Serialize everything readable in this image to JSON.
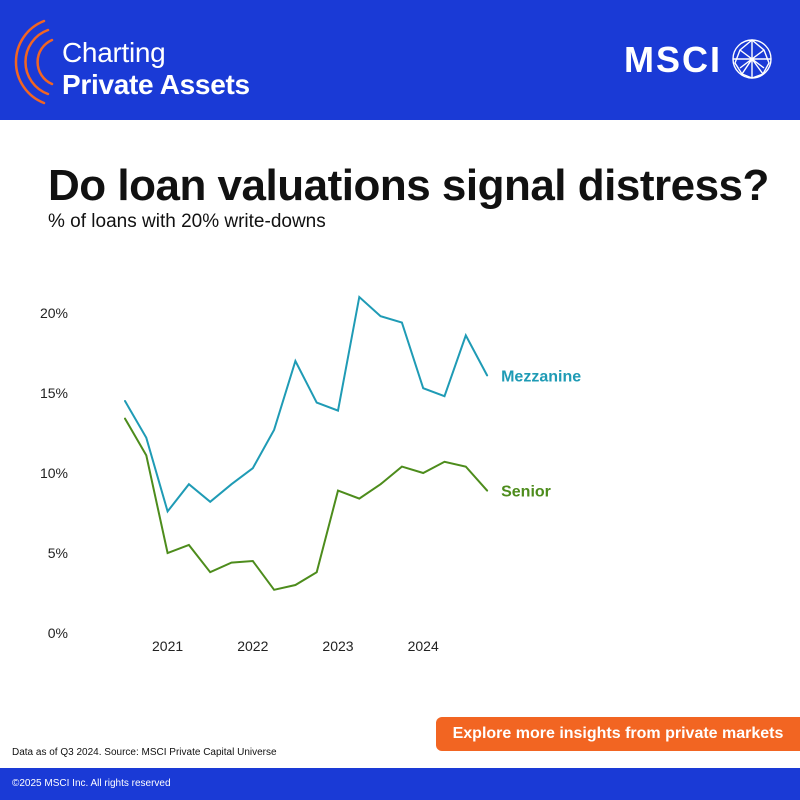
{
  "brand": {
    "line1": "Charting",
    "line2": "Private Assets",
    "logo_text": "MSCI",
    "logo_icon": "globe-icon"
  },
  "colors": {
    "header_bg": "#1a3ad6",
    "arc_accent": "#f26522",
    "cta_bg": "#f26522",
    "mezzanine": "#1f9bb5",
    "senior": "#4d8c1c"
  },
  "cta": {
    "label": "Explore more insights from private markets"
  },
  "source_note": "Data as of Q3 2024. Source: MSCI Private Capital Universe",
  "footer": {
    "copyright": "©2025 MSCI Inc. All rights reserved"
  },
  "chart_data": {
    "type": "line",
    "title": "Do loan valuations signal distress?",
    "subtitle": "% of loans with 20% write-downs",
    "x": [
      "2020-Q3",
      "2020-Q4",
      "2021-Q1",
      "2021-Q2",
      "2021-Q3",
      "2021-Q4",
      "2022-Q1",
      "2022-Q2",
      "2022-Q3",
      "2022-Q4",
      "2023-Q1",
      "2023-Q2",
      "2023-Q3",
      "2023-Q4",
      "2024-Q1",
      "2024-Q2",
      "2024-Q3",
      "2024-Q4"
    ],
    "x_tick_labels": [
      {
        "label": "2021",
        "at": 2
      },
      {
        "label": "2022",
        "at": 6
      },
      {
        "label": "2023",
        "at": 10
      },
      {
        "label": "2024",
        "at": 14
      }
    ],
    "y_ticks": [
      0,
      5,
      10,
      15,
      20
    ],
    "y_tick_labels": [
      "0%",
      "5%",
      "10%",
      "15%",
      "20%"
    ],
    "ylim": [
      0,
      20
    ],
    "grid": false,
    "series": [
      {
        "name": "Mezzanine",
        "color": "#1f9bb5",
        "values": [
          14.5,
          12.2,
          7.6,
          9.3,
          8.2,
          9.3,
          10.3,
          12.7,
          17.0,
          14.4,
          13.9,
          21.0,
          19.8,
          19.4,
          15.3,
          14.8,
          18.6,
          16.1
        ]
      },
      {
        "name": "Senior",
        "color": "#4d8c1c",
        "values": [
          13.4,
          11.1,
          5.0,
          5.5,
          3.8,
          4.4,
          4.5,
          2.7,
          3.0,
          3.8,
          8.9,
          8.4,
          9.3,
          10.4,
          10.0,
          10.7,
          10.4,
          8.9
        ]
      }
    ]
  }
}
